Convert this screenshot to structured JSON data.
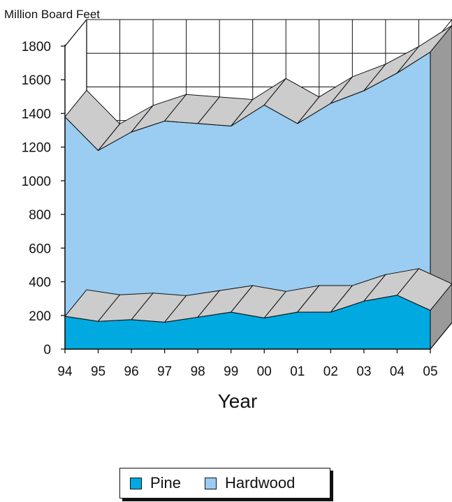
{
  "chart_data": {
    "type": "area",
    "stacked": true,
    "style": "3d",
    "ylabel": "Million Board  Feet",
    "xlabel": "Year",
    "categories": [
      "94",
      "95",
      "96",
      "97",
      "98",
      "99",
      "00",
      "01",
      "02",
      "03",
      "04",
      "05"
    ],
    "ylim": [
      0,
      1800
    ],
    "yticks": [
      "0",
      "200",
      "400",
      "600",
      "800",
      "1000",
      "1200",
      "1400",
      "1600",
      "1800"
    ],
    "grid": true,
    "legend_position": "bottom-center",
    "series": [
      {
        "name": "Pine",
        "values": [
          195,
          165,
          175,
          160,
          190,
          220,
          185,
          220,
          220,
          285,
          320,
          230
        ],
        "color": "#00a9e0"
      },
      {
        "name": "Hardwood",
        "values": [
          1185,
          1015,
          1115,
          1195,
          1150,
          1105,
          1265,
          1120,
          1240,
          1250,
          1320,
          1535
        ],
        "color": "#9acdf1"
      }
    ],
    "colors": {
      "side": "#9a9a9a",
      "top": "#cccccc",
      "outline": "#111111"
    }
  }
}
